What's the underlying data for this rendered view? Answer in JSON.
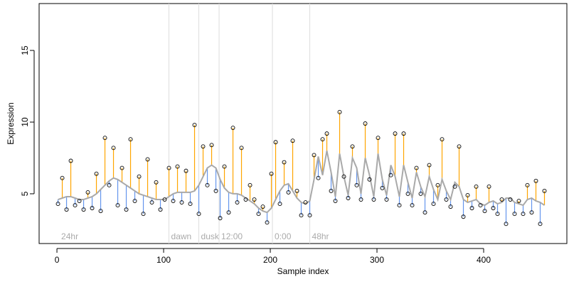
{
  "chart_data": {
    "type": "residual-scatter",
    "xlabel": "Sample index",
    "ylabel": "Expression",
    "xlim": [
      -16.7,
      478
    ],
    "ylim": [
      1.53,
      18.27
    ],
    "xticks": [
      0,
      100,
      200,
      300,
      400
    ],
    "yticks": [
      5,
      10,
      15
    ],
    "above_color": "#ffa500",
    "below_color": "#6495ed",
    "fit_color": "#a9a9a9",
    "point_color": "#000000",
    "marker_color": "#dddddd",
    "annotations": [
      {
        "x": 2,
        "label": "24hr",
        "line": false
      },
      {
        "x": 105,
        "label": "dawn",
        "line": true
      },
      {
        "x": 133,
        "label": "dusk",
        "line": true
      },
      {
        "x": 152,
        "label": "12:00",
        "line": true
      },
      {
        "x": 202,
        "label": "0:00",
        "line": true
      },
      {
        "x": 237,
        "label": "48hr",
        "line": true
      }
    ],
    "x": [
      1,
      5,
      9,
      13,
      17,
      21,
      25,
      29,
      33,
      37,
      41,
      45,
      49,
      53,
      57,
      61,
      65,
      69,
      73,
      77,
      81,
      85,
      89,
      93,
      97,
      101,
      105,
      109,
      113,
      117,
      121,
      125,
      129,
      133,
      137,
      141,
      145,
      149,
      153,
      157,
      161,
      165,
      169,
      173,
      177,
      181,
      185,
      189,
      193,
      197,
      201,
      205,
      209,
      213,
      217,
      221,
      225,
      229,
      233,
      237,
      241,
      245,
      249,
      253,
      257,
      261,
      265,
      269,
      273,
      277,
      281,
      285,
      289,
      293,
      297,
      301,
      305,
      309,
      313,
      317,
      321,
      325,
      329,
      333,
      337,
      341,
      345,
      349,
      353,
      357,
      361,
      365,
      369,
      373,
      377,
      381,
      385,
      389,
      393,
      397,
      401,
      405,
      409,
      413,
      417,
      421,
      425,
      429,
      433,
      437,
      441,
      445,
      449,
      453,
      457
    ],
    "values": [
      4.3,
      6.1,
      3.9,
      7.3,
      4.2,
      4.5,
      3.9,
      5.1,
      4.0,
      6.4,
      3.8,
      8.9,
      5.6,
      8.2,
      4.2,
      6.8,
      3.9,
      8.8,
      4.5,
      6.2,
      3.6,
      7.4,
      4.4,
      5.8,
      3.9,
      4.6,
      6.8,
      4.5,
      6.9,
      4.4,
      6.6,
      4.3,
      9.8,
      3.6,
      8.3,
      5.6,
      8.4,
      5.2,
      3.3,
      6.9,
      3.7,
      9.6,
      4.4,
      8.2,
      4.6,
      5.6,
      4.6,
      3.6,
      4.1,
      3.0,
      6.4,
      8.6,
      4.3,
      7.2,
      5.1,
      8.7,
      5.2,
      3.5,
      4.4,
      3.5,
      7.7,
      6.1,
      8.8,
      9.2,
      5.2,
      4.5,
      10.7,
      6.2,
      4.7,
      8.3,
      5.6,
      4.6,
      9.9,
      6.0,
      4.6,
      8.9,
      5.4,
      4.6,
      6.3,
      9.2,
      4.2,
      9.2,
      5.0,
      4.2,
      6.8,
      5.0,
      3.7,
      7.0,
      4.3,
      5.6,
      8.8,
      4.6,
      4.1,
      5.5,
      8.3,
      3.4,
      4.9,
      4.0,
      5.5,
      4.2,
      3.8,
      5.5,
      4.0,
      3.6,
      4.6,
      2.9,
      4.6,
      3.6,
      4.5,
      3.6,
      5.6,
      3.7,
      5.9,
      2.9,
      5.2
    ],
    "fitted": [
      4.6,
      4.7,
      4.8,
      4.8,
      4.7,
      4.6,
      4.6,
      4.7,
      4.8,
      5.0,
      5.3,
      5.6,
      5.9,
      6.1,
      6.0,
      5.8,
      5.6,
      5.4,
      5.2,
      5.0,
      4.9,
      4.8,
      4.7,
      4.6,
      4.6,
      4.6,
      4.8,
      5.0,
      5.1,
      5.1,
      5.1,
      5.1,
      5.2,
      5.6,
      6.2,
      6.8,
      7.0,
      6.8,
      6.0,
      5.4,
      5.1,
      5.0,
      5.0,
      4.9,
      4.7,
      4.5,
      4.3,
      4.0,
      3.8,
      3.7,
      4.0,
      4.6,
      5.2,
      5.6,
      5.7,
      5.2,
      4.7,
      4.4,
      4.3,
      4.5,
      6.0,
      7.6,
      6.3,
      8.0,
      6.5,
      4.8,
      7.8,
      6.2,
      4.9,
      7.5,
      6.8,
      5.0,
      7.5,
      6.3,
      4.8,
      7.8,
      6.0,
      4.9,
      7.0,
      6.2,
      4.8,
      7.0,
      5.8,
      4.7,
      6.5,
      5.5,
      4.8,
      6.2,
      5.3,
      4.6,
      6.0,
      5.2,
      4.6,
      5.8,
      5.5,
      4.6,
      4.4,
      4.5,
      4.6,
      4.3,
      4.2,
      4.4,
      4.5,
      4.3,
      4.4,
      4.7,
      4.7,
      4.4,
      4.3,
      4.2,
      4.6,
      4.7,
      4.5,
      4.4,
      4.2
    ]
  }
}
